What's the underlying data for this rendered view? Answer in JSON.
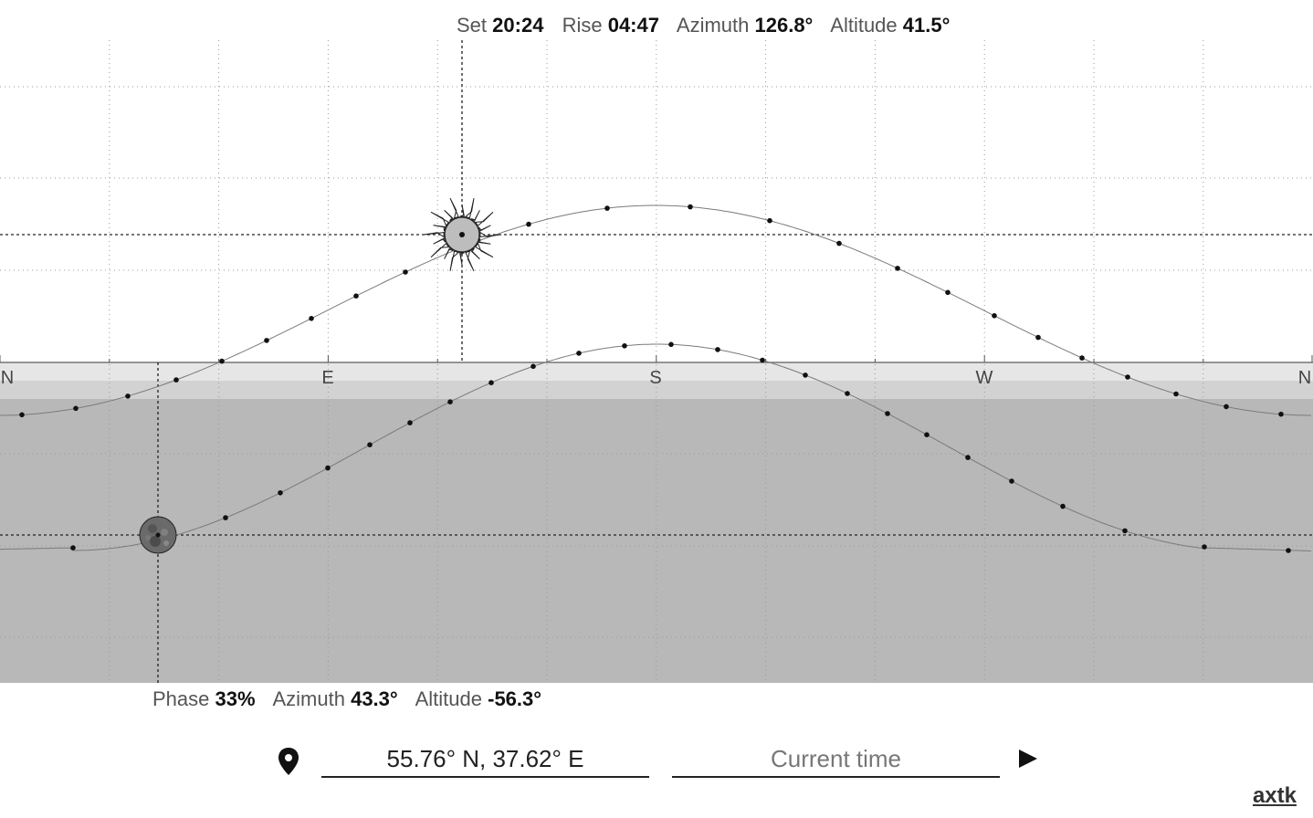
{
  "sun_info": {
    "set_label": "Set",
    "set_value": "20:24",
    "rise_label": "Rise",
    "rise_value": "04:47",
    "azimuth_label": "Azimuth",
    "azimuth_value": "126.8°",
    "altitude_label": "Altitude",
    "altitude_value": "41.5°"
  },
  "moon_info": {
    "phase_label": "Phase",
    "phase_value": "33%",
    "azimuth_label": "Azimuth",
    "azimuth_value": "43.3°",
    "altitude_label": "Altitude",
    "altitude_value": "-56.3°"
  },
  "compass": {
    "north": "N",
    "east": "E",
    "south": "S",
    "west": "W",
    "north_end": "N"
  },
  "location": {
    "value": "55.76° N, 37.62° E"
  },
  "time": {
    "placeholder": "Current time"
  },
  "brand": {
    "label": "axtk"
  },
  "icons": {
    "location": "map-pin-icon",
    "play": "play-icon",
    "sun": "sun-icon",
    "moon": "moon-icon"
  },
  "colors": {
    "sky": "#ffffff",
    "twilight_1": "#e6e6e6",
    "twilight_2": "#d2d2d2",
    "night": "#b8b8b8",
    "track": "#777777",
    "dot": "#111111"
  }
}
